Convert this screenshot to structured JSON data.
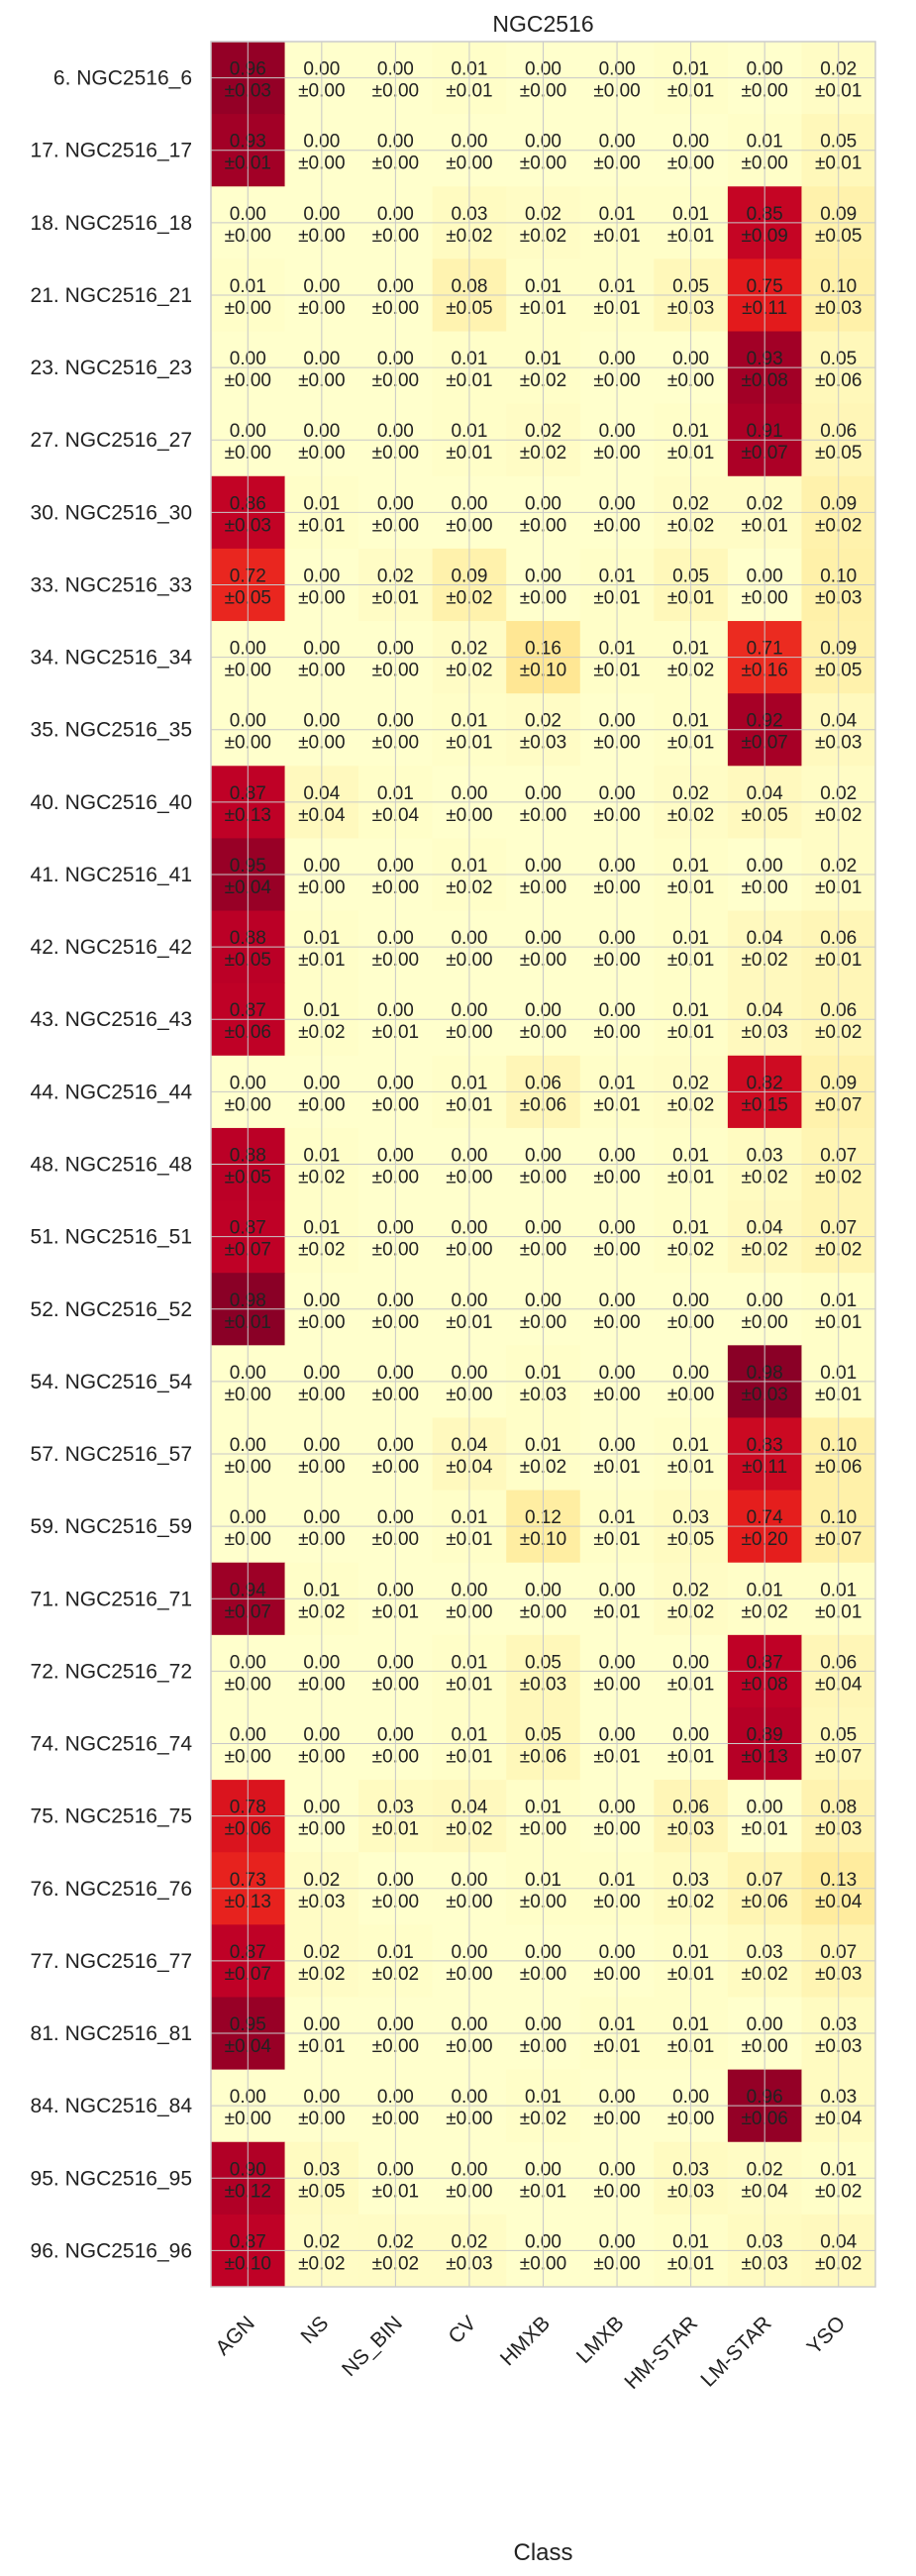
{
  "chart_data": {
    "type": "heatmap",
    "title": "NGC2516",
    "xlabel": "Class",
    "ylabel": "",
    "columns": [
      "AGN",
      "NS",
      "NS_BIN",
      "CV",
      "HMXB",
      "LMXB",
      "HM-STAR",
      "LM-STAR",
      "YSO"
    ],
    "rows": [
      "6. NGC2516_6",
      "17. NGC2516_17",
      "18. NGC2516_18",
      "21. NGC2516_21",
      "23. NGC2516_23",
      "27. NGC2516_27",
      "30. NGC2516_30",
      "33. NGC2516_33",
      "34. NGC2516_34",
      "35. NGC2516_35",
      "40. NGC2516_40",
      "41. NGC2516_41",
      "42. NGC2516_42",
      "43. NGC2516_43",
      "44. NGC2516_44",
      "48. NGC2516_48",
      "51. NGC2516_51",
      "52. NGC2516_52",
      "54. NGC2516_54",
      "57. NGC2516_57",
      "59. NGC2516_59",
      "71. NGC2516_71",
      "72. NGC2516_72",
      "74. NGC2516_74",
      "75. NGC2516_75",
      "76. NGC2516_76",
      "77. NGC2516_77",
      "81. NGC2516_81",
      "84. NGC2516_84",
      "95. NGC2516_95",
      "96. NGC2516_96"
    ],
    "values": [
      [
        0.96,
        0.0,
        0.0,
        0.01,
        0.0,
        0.0,
        0.01,
        0.0,
        0.02
      ],
      [
        0.93,
        0.0,
        0.0,
        0.0,
        0.0,
        0.0,
        0.0,
        0.01,
        0.05
      ],
      [
        0.0,
        0.0,
        0.0,
        0.03,
        0.02,
        0.01,
        0.01,
        0.85,
        0.09
      ],
      [
        0.01,
        0.0,
        0.0,
        0.08,
        0.01,
        0.01,
        0.05,
        0.75,
        0.1
      ],
      [
        0.0,
        0.0,
        0.0,
        0.01,
        0.01,
        0.0,
        0.0,
        0.93,
        0.05
      ],
      [
        0.0,
        0.0,
        0.0,
        0.01,
        0.02,
        0.0,
        0.01,
        0.91,
        0.06
      ],
      [
        0.86,
        0.01,
        0.0,
        0.0,
        0.0,
        0.0,
        0.02,
        0.02,
        0.09
      ],
      [
        0.72,
        0.0,
        0.02,
        0.09,
        0.0,
        0.01,
        0.05,
        0.0,
        0.1
      ],
      [
        0.0,
        0.0,
        0.0,
        0.02,
        0.16,
        0.01,
        0.01,
        0.71,
        0.09
      ],
      [
        0.0,
        0.0,
        0.0,
        0.01,
        0.02,
        0.0,
        0.01,
        0.92,
        0.04
      ],
      [
        0.87,
        0.04,
        0.01,
        0.0,
        0.0,
        0.0,
        0.02,
        0.04,
        0.02
      ],
      [
        0.95,
        0.0,
        0.0,
        0.01,
        0.0,
        0.0,
        0.01,
        0.0,
        0.02
      ],
      [
        0.88,
        0.01,
        0.0,
        0.0,
        0.0,
        0.0,
        0.01,
        0.04,
        0.06
      ],
      [
        0.87,
        0.01,
        0.0,
        0.0,
        0.0,
        0.0,
        0.01,
        0.04,
        0.06
      ],
      [
        0.0,
        0.0,
        0.0,
        0.01,
        0.06,
        0.01,
        0.02,
        0.82,
        0.09
      ],
      [
        0.88,
        0.01,
        0.0,
        0.0,
        0.0,
        0.0,
        0.01,
        0.03,
        0.07
      ],
      [
        0.87,
        0.01,
        0.0,
        0.0,
        0.0,
        0.0,
        0.01,
        0.04,
        0.07
      ],
      [
        0.98,
        0.0,
        0.0,
        0.0,
        0.0,
        0.0,
        0.0,
        0.0,
        0.01
      ],
      [
        0.0,
        0.0,
        0.0,
        0.0,
        0.01,
        0.0,
        0.0,
        0.98,
        0.01
      ],
      [
        0.0,
        0.0,
        0.0,
        0.04,
        0.01,
        0.0,
        0.01,
        0.83,
        0.1
      ],
      [
        0.0,
        0.0,
        0.0,
        0.01,
        0.12,
        0.01,
        0.03,
        0.74,
        0.1
      ],
      [
        0.94,
        0.01,
        0.0,
        0.0,
        0.0,
        0.0,
        0.02,
        0.01,
        0.01
      ],
      [
        0.0,
        0.0,
        0.0,
        0.01,
        0.05,
        0.0,
        0.0,
        0.87,
        0.06
      ],
      [
        0.0,
        0.0,
        0.0,
        0.01,
        0.05,
        0.0,
        0.0,
        0.89,
        0.05
      ],
      [
        0.78,
        0.0,
        0.03,
        0.04,
        0.01,
        0.0,
        0.06,
        0.0,
        0.08
      ],
      [
        0.73,
        0.02,
        0.0,
        0.0,
        0.01,
        0.01,
        0.03,
        0.07,
        0.13
      ],
      [
        0.87,
        0.02,
        0.01,
        0.0,
        0.0,
        0.0,
        0.01,
        0.03,
        0.07
      ],
      [
        0.95,
        0.0,
        0.0,
        0.0,
        0.0,
        0.01,
        0.01,
        0.0,
        0.03
      ],
      [
        0.0,
        0.0,
        0.0,
        0.0,
        0.01,
        0.0,
        0.0,
        0.96,
        0.03
      ],
      [
        0.9,
        0.03,
        0.0,
        0.0,
        0.0,
        0.0,
        0.03,
        0.02,
        0.01
      ],
      [
        0.87,
        0.02,
        0.02,
        0.02,
        0.0,
        0.0,
        0.01,
        0.03,
        0.04
      ]
    ],
    "errors": [
      [
        0.03,
        0.0,
        0.0,
        0.01,
        0.0,
        0.0,
        0.01,
        0.0,
        0.01
      ],
      [
        0.01,
        0.0,
        0.0,
        0.0,
        0.0,
        0.0,
        0.0,
        0.0,
        0.01
      ],
      [
        0.0,
        0.0,
        0.0,
        0.02,
        0.02,
        0.01,
        0.01,
        0.09,
        0.05
      ],
      [
        0.0,
        0.0,
        0.0,
        0.05,
        0.01,
        0.01,
        0.03,
        0.11,
        0.03
      ],
      [
        0.0,
        0.0,
        0.0,
        0.01,
        0.02,
        0.0,
        0.0,
        0.08,
        0.06
      ],
      [
        0.0,
        0.0,
        0.0,
        0.01,
        0.02,
        0.0,
        0.01,
        0.07,
        0.05
      ],
      [
        0.03,
        0.01,
        0.0,
        0.0,
        0.0,
        0.0,
        0.02,
        0.01,
        0.02
      ],
      [
        0.05,
        0.0,
        0.01,
        0.02,
        0.0,
        0.01,
        0.01,
        0.0,
        0.03
      ],
      [
        0.0,
        0.0,
        0.0,
        0.02,
        0.1,
        0.01,
        0.02,
        0.16,
        0.05
      ],
      [
        0.0,
        0.0,
        0.0,
        0.01,
        0.03,
        0.0,
        0.01,
        0.07,
        0.03
      ],
      [
        0.13,
        0.04,
        0.04,
        0.0,
        0.0,
        0.0,
        0.02,
        0.05,
        0.02
      ],
      [
        0.04,
        0.0,
        0.0,
        0.02,
        0.0,
        0.0,
        0.01,
        0.0,
        0.01
      ],
      [
        0.05,
        0.01,
        0.0,
        0.0,
        0.0,
        0.0,
        0.01,
        0.02,
        0.01
      ],
      [
        0.06,
        0.02,
        0.01,
        0.0,
        0.0,
        0.0,
        0.01,
        0.03,
        0.02
      ],
      [
        0.0,
        0.0,
        0.0,
        0.01,
        0.06,
        0.01,
        0.02,
        0.15,
        0.07
      ],
      [
        0.05,
        0.02,
        0.0,
        0.0,
        0.0,
        0.0,
        0.01,
        0.02,
        0.02
      ],
      [
        0.07,
        0.02,
        0.0,
        0.0,
        0.0,
        0.0,
        0.02,
        0.02,
        0.02
      ],
      [
        0.01,
        0.0,
        0.0,
        0.01,
        0.0,
        0.0,
        0.0,
        0.0,
        0.01
      ],
      [
        0.0,
        0.0,
        0.0,
        0.0,
        0.03,
        0.0,
        0.0,
        0.03,
        0.01
      ],
      [
        0.0,
        0.0,
        0.0,
        0.04,
        0.02,
        0.01,
        0.01,
        0.11,
        0.06
      ],
      [
        0.0,
        0.0,
        0.0,
        0.01,
        0.1,
        0.01,
        0.05,
        0.2,
        0.07
      ],
      [
        0.07,
        0.02,
        0.01,
        0.0,
        0.0,
        0.01,
        0.02,
        0.02,
        0.01
      ],
      [
        0.0,
        0.0,
        0.0,
        0.01,
        0.03,
        0.0,
        0.01,
        0.08,
        0.04
      ],
      [
        0.0,
        0.0,
        0.0,
        0.01,
        0.06,
        0.01,
        0.01,
        0.13,
        0.07
      ],
      [
        0.06,
        0.0,
        0.01,
        0.02,
        0.0,
        0.0,
        0.03,
        0.01,
        0.03
      ],
      [
        0.13,
        0.03,
        0.0,
        0.0,
        0.0,
        0.0,
        0.02,
        0.06,
        0.04
      ],
      [
        0.07,
        0.02,
        0.02,
        0.0,
        0.0,
        0.0,
        0.01,
        0.02,
        0.03
      ],
      [
        0.04,
        0.01,
        0.0,
        0.0,
        0.0,
        0.01,
        0.01,
        0.0,
        0.03
      ],
      [
        0.0,
        0.0,
        0.0,
        0.0,
        0.02,
        0.0,
        0.0,
        0.06,
        0.04
      ],
      [
        0.12,
        0.05,
        0.01,
        0.0,
        0.01,
        0.0,
        0.03,
        0.04,
        0.02
      ],
      [
        0.1,
        0.02,
        0.02,
        0.03,
        0.0,
        0.0,
        0.01,
        0.03,
        0.02
      ]
    ],
    "value_range": [
      0,
      1
    ],
    "colormap": [
      "#ffffcc",
      "#ffeda0",
      "#fed976",
      "#feb24c",
      "#fd8d3c",
      "#fc4e2a",
      "#e31a1c",
      "#bd0026",
      "#800026"
    ],
    "grid": true,
    "legend": "none"
  }
}
